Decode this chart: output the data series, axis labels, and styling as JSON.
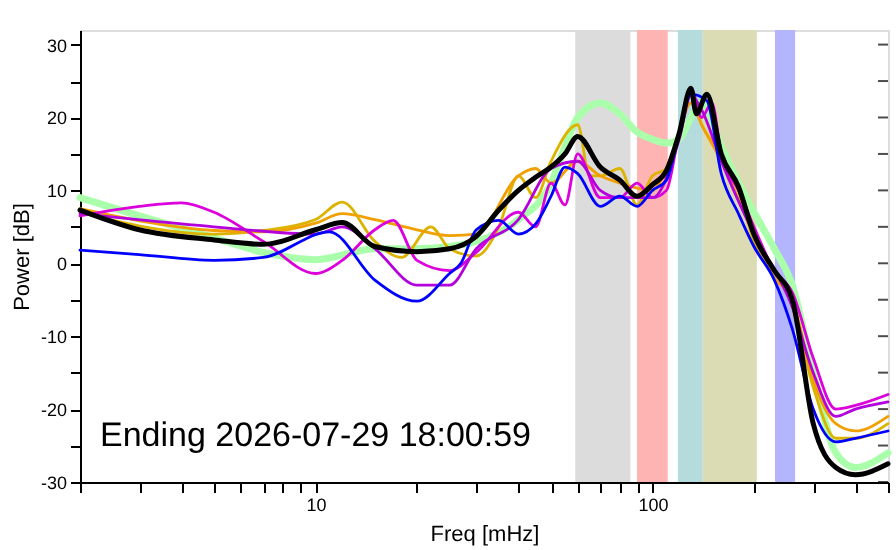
{
  "chart_data": {
    "type": "line",
    "xlabel": "Freq [mHz]",
    "ylabel": "Power [dB]",
    "log": "x",
    "grid": false,
    "marker": "none",
    "line_style": "solid",
    "xlim": [
      2,
      500
    ],
    "ylim": [
      -30,
      32
    ],
    "xticks": [
      {
        "value": 2,
        "label": null
      },
      {
        "value": 3,
        "label": null
      },
      {
        "value": 4,
        "label": null
      },
      {
        "value": 5,
        "label": null
      },
      {
        "value": 6,
        "label": null
      },
      {
        "value": 7,
        "label": null
      },
      {
        "value": 8,
        "label": null
      },
      {
        "value": 9,
        "label": null
      },
      10,
      {
        "value": 20,
        "label": null
      },
      {
        "value": 30,
        "label": null
      },
      {
        "value": 40,
        "label": null
      },
      {
        "value": 50,
        "label": null
      },
      {
        "value": 60,
        "label": null
      },
      {
        "value": 70,
        "label": null
      },
      {
        "value": 80,
        "label": null
      },
      {
        "value": 90,
        "label": null
      },
      100,
      {
        "value": 200,
        "label": null
      },
      {
        "value": 300,
        "label": null
      },
      {
        "value": 400,
        "label": null
      },
      {
        "value": 500,
        "label": null
      }
    ],
    "yticks": [
      -30,
      {
        "value": -25,
        "label": null
      },
      -20,
      {
        "value": -15,
        "label": null
      },
      -10,
      {
        "value": -5,
        "label": null
      },
      0,
      {
        "value": 5,
        "label": null
      },
      10,
      {
        "value": 15,
        "label": null
      },
      20,
      {
        "value": 25,
        "label": null
      },
      30
    ],
    "bands": [
      {
        "axis": "x",
        "from": 59,
        "to": 86,
        "color": "#dcdcdc"
      },
      {
        "axis": "x",
        "from": 90,
        "to": 111,
        "color": "#ffb4b4"
      },
      {
        "axis": "x",
        "from": 119,
        "to": 141,
        "color": "#b4dcdc"
      },
      {
        "axis": "x",
        "from": 141,
        "to": 204,
        "color": "#dcdcb4"
      },
      {
        "axis": "x",
        "from": 231,
        "to": 265,
        "color": "#b4b4ff"
      }
    ],
    "annotations": [
      "Ending 2026-07-29 18:00:59"
    ],
    "series": [
      {
        "color": "#aaffaa",
        "x": [
          2,
          3,
          5,
          7,
          10,
          15,
          20,
          25,
          30,
          40,
          50,
          55,
          60,
          70,
          80,
          90,
          100,
          110,
          120,
          130,
          140,
          160,
          180,
          200,
          230,
          260,
          300,
          350,
          400,
          500
        ],
        "values": [
          9,
          6.5,
          3.5,
          1.5,
          0.5,
          2,
          2,
          2.3,
          3,
          6,
          11,
          16,
          20,
          22,
          20.5,
          18,
          17,
          16.5,
          17,
          20,
          22,
          16,
          11,
          7,
          2,
          -3,
          -15,
          -26,
          -28,
          -26
        ]
      },
      {
        "color": "#dcb400",
        "x": [
          2,
          5,
          7,
          10,
          12,
          15,
          18,
          22,
          25,
          30,
          35,
          40,
          45,
          50,
          60,
          65,
          70,
          80,
          90,
          100,
          110,
          120,
          130,
          140,
          160,
          180,
          200,
          230,
          260,
          300,
          350,
          400,
          500
        ],
        "values": [
          7,
          4,
          4.5,
          6,
          8.4,
          3,
          0.8,
          5,
          2,
          1,
          5,
          12,
          9,
          14,
          19,
          12,
          12,
          13,
          8,
          12,
          13,
          18,
          23,
          19,
          15,
          10,
          3,
          -1,
          -6,
          -17,
          -24,
          -24,
          -22
        ]
      },
      {
        "color": "#f0a000",
        "x": [
          2,
          5,
          7,
          10,
          12,
          15,
          20,
          25,
          30,
          40,
          45,
          50,
          60,
          70,
          80,
          100,
          110,
          120,
          130,
          140,
          160,
          200,
          230,
          260,
          300,
          350,
          400,
          500
        ],
        "values": [
          7.5,
          4.5,
          4.3,
          5.5,
          6.8,
          6,
          4.6,
          3.8,
          4,
          12,
          13,
          11,
          14,
          12,
          11,
          10,
          13,
          18,
          22,
          19,
          14,
          4,
          -2,
          -5,
          -16,
          -22,
          -23,
          -21
        ]
      },
      {
        "color": "#dc00dc",
        "x": [
          2,
          3,
          4,
          5,
          7,
          10,
          12,
          15,
          17,
          20,
          25,
          30,
          40,
          45,
          50,
          55,
          60,
          70,
          80,
          90,
          100,
          110,
          120,
          130,
          140,
          150,
          160,
          180,
          200,
          230,
          260,
          300,
          350,
          400,
          500
        ],
        "values": [
          6.5,
          7.8,
          8.3,
          7,
          3,
          -1.4,
          0.4,
          4.6,
          5.9,
          0.4,
          -1,
          1.5,
          7,
          5,
          11,
          8,
          15,
          9,
          9,
          11,
          9,
          10,
          18,
          24,
          20,
          22,
          15,
          10,
          5,
          -1,
          -4,
          -13,
          -20,
          -19.5,
          -18
        ]
      },
      {
        "color": "#b400dc",
        "x": [
          2,
          5,
          10,
          12,
          15,
          20,
          25,
          30,
          40,
          50,
          60,
          70,
          80,
          100,
          120,
          130,
          140,
          160,
          200,
          260,
          300,
          350,
          400,
          500
        ],
        "values": [
          6.8,
          5,
          4,
          5,
          2,
          -3,
          -3,
          2,
          6,
          13,
          14,
          10,
          9,
          9,
          17,
          23,
          21,
          14,
          4,
          -6,
          -15,
          -21,
          -20,
          -19
        ]
      },
      {
        "color": "#0000ff",
        "x": [
          2,
          3,
          5,
          7,
          11,
          15,
          20,
          25,
          27,
          30,
          35,
          40,
          45,
          50,
          55,
          60,
          70,
          80,
          90,
          100,
          110,
          120,
          130,
          145,
          160,
          180,
          200,
          230,
          260,
          300,
          350,
          400,
          500
        ],
        "values": [
          1.8,
          1.2,
          0.4,
          0.8,
          4.3,
          -2.3,
          -5.2,
          -1.4,
          0,
          4.6,
          5.9,
          4,
          5.4,
          9.2,
          13.2,
          12.3,
          7.8,
          9.2,
          7.8,
          10,
          11.4,
          17.8,
          23.2,
          22.3,
          12.3,
          6.8,
          2.3,
          -2.3,
          -9,
          -20,
          -24.5,
          -24,
          -23
        ]
      },
      {
        "color": "#000000",
        "x": [
          2,
          3,
          5,
          7,
          10,
          12,
          15,
          20,
          25,
          30,
          35,
          40,
          45,
          50,
          55,
          60,
          70,
          80,
          90,
          100,
          110,
          120,
          130,
          135,
          145,
          160,
          180,
          200,
          230,
          260,
          300,
          350,
          400,
          500
        ],
        "values": [
          7.3,
          4.6,
          3.2,
          2.6,
          4.6,
          5.6,
          2.3,
          1.6,
          2,
          3.7,
          7.3,
          10,
          11.8,
          13.2,
          15,
          17.4,
          13.2,
          11.4,
          9.2,
          10.8,
          12.7,
          17.8,
          24,
          20.5,
          23.2,
          15,
          10.5,
          4,
          -1,
          -5,
          -22,
          -28,
          -29,
          -27.5
        ]
      }
    ]
  }
}
